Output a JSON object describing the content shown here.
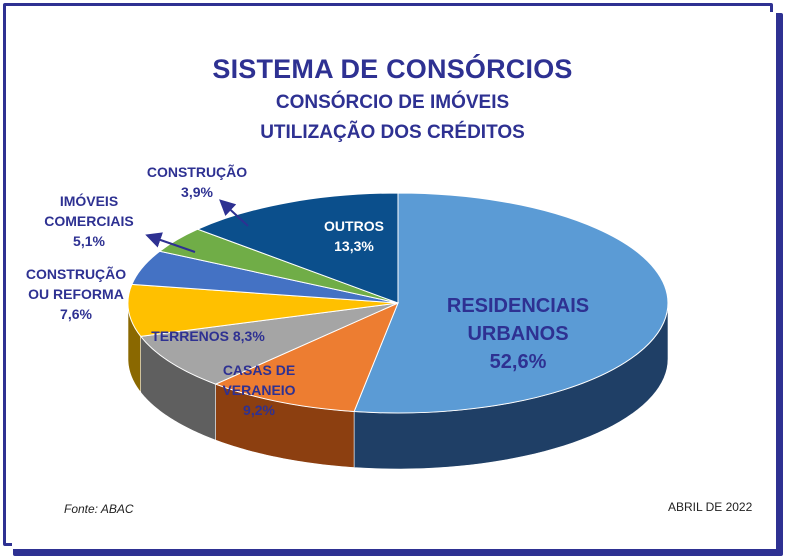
{
  "title": "SISTEMA DE CONSÓRCIOS",
  "subtitle1": "CONSÓRCIO DE IMÓVEIS",
  "subtitle2": "UTILIZAÇÃO DOS CRÉDITOS",
  "source": "Fonte: ABAC",
  "date": "ABRIL DE 2022",
  "colors": {
    "frame": "#2e3192",
    "label_dark": "#2e3192",
    "label_white": "#ffffff"
  },
  "chart_data": {
    "type": "pie",
    "style": "3d",
    "title": "SISTEMA DE CONSÓRCIOS",
    "slices": [
      {
        "name": "RESIDENCIAIS URBANOS",
        "label_lines": [
          "RESIDENCIAIS",
          "URBANOS",
          "52,6%"
        ],
        "value": 52.6,
        "color": "#5b9bd5",
        "side": "#1f3f66"
      },
      {
        "name": "CASAS DE VERANEIO",
        "label_lines": [
          "CASAS DE",
          "VERANEIO",
          "9,2%"
        ],
        "value": 9.2,
        "color": "#ed7d31",
        "side": "#8c3f10"
      },
      {
        "name": "TERRENOS",
        "label_lines": [
          "TERRENOS 8,3%"
        ],
        "value": 8.3,
        "color": "#a5a5a5",
        "side": "#5f5f5f"
      },
      {
        "name": "CONSTRUÇÃO OU REFORMA",
        "label_lines": [
          "CONSTRUÇÃO",
          "OU REFORMA",
          "7,6%"
        ],
        "value": 7.6,
        "color": "#ffc000",
        "side": "#8a6800"
      },
      {
        "name": "IMÓVEIS COMERCIAIS",
        "label_lines": [
          "IMÓVEIS",
          "COMERCIAIS",
          "5,1%"
        ],
        "value": 5.1,
        "color": "#4472c4",
        "side": "#22396a"
      },
      {
        "name": "CONSTRUÇÃO",
        "label_lines": [
          "CONSTRUÇÃO",
          "3,9%"
        ],
        "value": 3.9,
        "color": "#70ad47",
        "side": "#3a5e24"
      },
      {
        "name": "OUTROS",
        "label_lines": [
          "OUTROS",
          "13,3%"
        ],
        "value": 13.3,
        "color": "#0b4f8c",
        "side": "#072f55"
      }
    ]
  }
}
